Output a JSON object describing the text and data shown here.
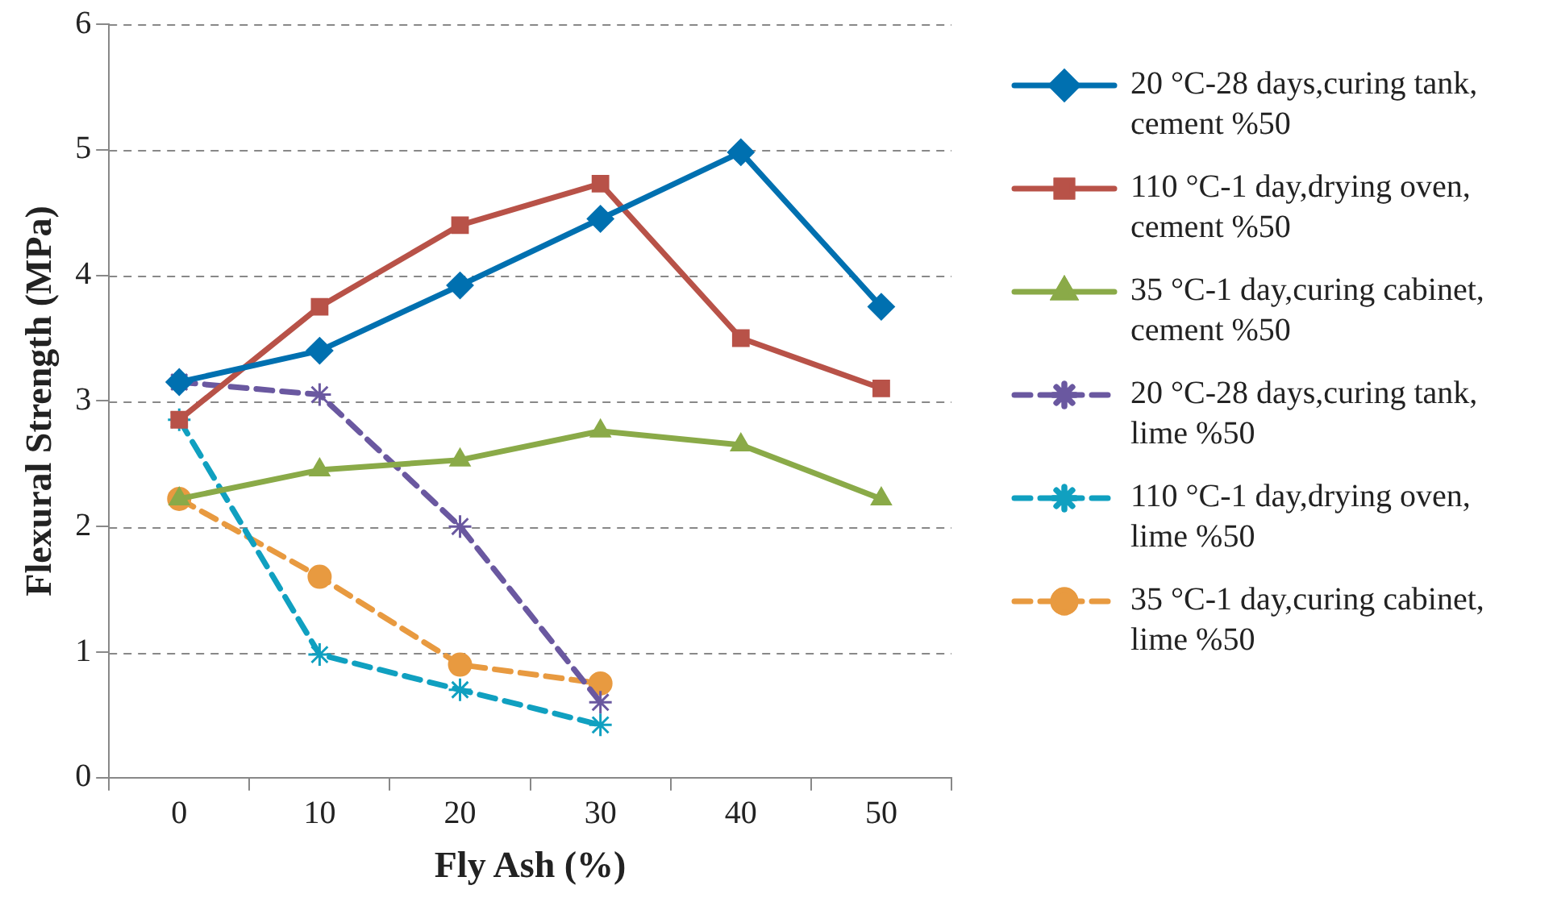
{
  "chart_data": {
    "type": "line",
    "xlabel": "Fly Ash (%)",
    "ylabel": "Flexural Strength (MPa)",
    "categories": [
      "0",
      "10",
      "20",
      "30",
      "40",
      "50"
    ],
    "ylim": [
      0,
      6
    ],
    "yticks": [
      0,
      1,
      2,
      3,
      4,
      5,
      6
    ],
    "grid": "y",
    "legend": "right",
    "series": [
      {
        "name": "20 °C-28 days,curing tank, cement %50",
        "color": "#0070b0",
        "marker": "diamond",
        "line_style": "solid",
        "values": [
          3.15,
          3.4,
          3.92,
          4.45,
          4.98,
          3.75
        ]
      },
      {
        "name": "110 °C-1 day,drying oven, cement %50",
        "color": "#b85248",
        "marker": "square",
        "line_style": "solid",
        "values": [
          2.85,
          3.75,
          4.4,
          4.73,
          3.5,
          3.1
        ]
      },
      {
        "name": "35 °C-1 day,curing cabinet, cement %50",
        "color": "#8aaa48",
        "marker": "triangle",
        "line_style": "solid",
        "values": [
          2.22,
          2.45,
          2.53,
          2.76,
          2.65,
          2.22
        ]
      },
      {
        "name": "20 °C-28 days,curing tank, lime %50",
        "color": "#6a58a0",
        "marker": "cross",
        "line_style": "dashed",
        "values": [
          3.15,
          3.05,
          2.0,
          0.6,
          null,
          null
        ]
      },
      {
        "name": "110 °C-1 day,drying oven, lime %50",
        "color": "#10a0c0",
        "marker": "cross",
        "line_style": "dashed",
        "values": [
          2.85,
          0.98,
          0.7,
          0.42,
          null,
          null
        ]
      },
      {
        "name": "35 °C-1 day,curing cabinet, lime %50",
        "color": "#e89a40",
        "marker": "circle",
        "line_style": "dashed",
        "values": [
          2.22,
          1.6,
          0.9,
          0.75,
          null,
          null
        ]
      }
    ]
  }
}
